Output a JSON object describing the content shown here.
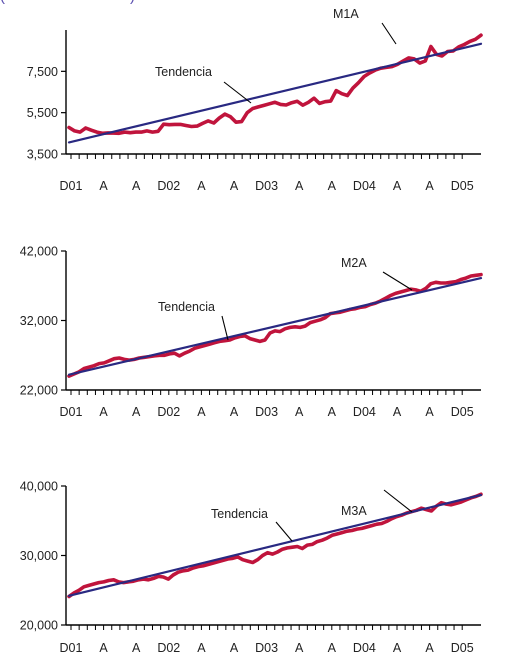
{
  "page_title": "(                              )",
  "colors": {
    "series": "#c0143c",
    "trend": "#2a2a82",
    "axis": "#000000",
    "text": "#222222",
    "title": "#5a4fb0"
  },
  "chart_data": [
    {
      "type": "line",
      "name": "m1a",
      "x_tick_labels": [
        "D01",
        "A",
        "A",
        "D02",
        "A",
        "A",
        "D03",
        "A",
        "A",
        "D04",
        "A",
        "A",
        "D05"
      ],
      "y_tick_labels": [
        "3,500",
        "5,500",
        "7,500"
      ],
      "y_ticks": [
        3500,
        5500,
        7500
      ],
      "ylim": [
        3500,
        9500
      ],
      "grid": false,
      "series": [
        {
          "name": "M1A",
          "values": [
            4780,
            4620,
            4560,
            4760,
            4650,
            4560,
            4500,
            4520,
            4510,
            4500,
            4560,
            4530,
            4560,
            4560,
            4620,
            4560,
            4600,
            4940,
            4920,
            4930,
            4930,
            4880,
            4830,
            4850,
            4980,
            5100,
            5000,
            5240,
            5430,
            5300,
            5040,
            5070,
            5500,
            5700,
            5780,
            5850,
            5930,
            6000,
            5900,
            5870,
            5980,
            6050,
            5860,
            6000,
            6200,
            5950,
            6030,
            6060,
            6570,
            6420,
            6330,
            6690,
            6950,
            7250,
            7420,
            7560,
            7650,
            7690,
            7730,
            7840,
            8000,
            8150,
            8100,
            7900,
            8000,
            8700,
            8320,
            8240,
            8460,
            8490,
            8680,
            8800,
            8950,
            9050,
            9250
          ]
        },
        {
          "name": "Tendencia",
          "values": [
            4060,
            8830
          ]
        }
      ],
      "annotations": [
        {
          "text": "M1A",
          "target": "M1A"
        },
        {
          "text": "Tendencia",
          "target": "Tendencia"
        }
      ]
    },
    {
      "type": "line",
      "name": "m2a",
      "x_tick_labels": [
        "D01",
        "A",
        "A",
        "D02",
        "A",
        "A",
        "D03",
        "A",
        "A",
        "D04",
        "A",
        "A",
        "D05"
      ],
      "y_tick_labels": [
        "22,000",
        "32,000",
        "42,000"
      ],
      "y_ticks": [
        22000,
        32000,
        42000
      ],
      "ylim": [
        22000,
        42000
      ],
      "grid": false,
      "series": [
        {
          "name": "M2A",
          "values": [
            24000,
            24300,
            24600,
            25100,
            25300,
            25500,
            25800,
            25900,
            26200,
            26500,
            26600,
            26400,
            26300,
            26400,
            26600,
            26700,
            26800,
            26900,
            27000,
            27000,
            27200,
            27300,
            26900,
            27300,
            27600,
            28000,
            28200,
            28400,
            28600,
            28800,
            29000,
            29100,
            29200,
            29500,
            29700,
            29800,
            29400,
            29200,
            29000,
            29200,
            30200,
            30500,
            30400,
            30800,
            31000,
            31100,
            31000,
            31200,
            31700,
            31900,
            32100,
            32400,
            33000,
            33100,
            33200,
            33400,
            33600,
            33700,
            33900,
            34000,
            34300,
            34500,
            34800,
            35200,
            35600,
            35900,
            36100,
            36300,
            36500,
            36400,
            36200,
            36600,
            37300,
            37500,
            37400,
            37400,
            37500,
            37600,
            37900,
            38100,
            38400,
            38500,
            38600
          ]
        },
        {
          "name": "Tendencia",
          "values": [
            24200,
            38100
          ]
        }
      ],
      "annotations": [
        {
          "text": "M2A",
          "target": "M2A"
        },
        {
          "text": "Tendencia",
          "target": "Tendencia"
        }
      ]
    },
    {
      "type": "line",
      "name": "m3a",
      "x_tick_labels": [
        "D01",
        "A",
        "A",
        "D02",
        "A",
        "A",
        "D03",
        "A",
        "A",
        "D04",
        "A",
        "A",
        "D05"
      ],
      "y_tick_labels": [
        "20,000",
        "30,000",
        "40,000"
      ],
      "y_ticks": [
        20000,
        30000,
        40000
      ],
      "ylim": [
        20000,
        40000
      ],
      "grid": false,
      "series": [
        {
          "name": "M3A",
          "values": [
            24100,
            24600,
            25000,
            25500,
            25700,
            25900,
            26100,
            26200,
            26400,
            26500,
            26200,
            26100,
            26200,
            26300,
            26500,
            26600,
            26500,
            26700,
            27000,
            26900,
            26600,
            27200,
            27600,
            27800,
            27900,
            28200,
            28400,
            28500,
            28700,
            28900,
            29100,
            29300,
            29500,
            29600,
            29800,
            29400,
            29200,
            29000,
            29400,
            30000,
            30400,
            30200,
            30500,
            30900,
            31100,
            31200,
            31300,
            31000,
            31500,
            31600,
            32000,
            32200,
            32500,
            32900,
            33100,
            33300,
            33500,
            33600,
            33800,
            33900,
            34100,
            34300,
            34500,
            34600,
            34900,
            35300,
            35600,
            35800,
            36100,
            36300,
            36500,
            36800,
            36600,
            36400,
            37100,
            37600,
            37400,
            37300,
            37500,
            37700,
            38000,
            38300,
            38500,
            38800
          ]
        },
        {
          "name": "Tendencia",
          "values": [
            24200,
            38700
          ]
        }
      ],
      "annotations": [
        {
          "text": "M3A",
          "target": "M3A"
        },
        {
          "text": "Tendencia",
          "target": "Tendencia"
        }
      ]
    }
  ]
}
